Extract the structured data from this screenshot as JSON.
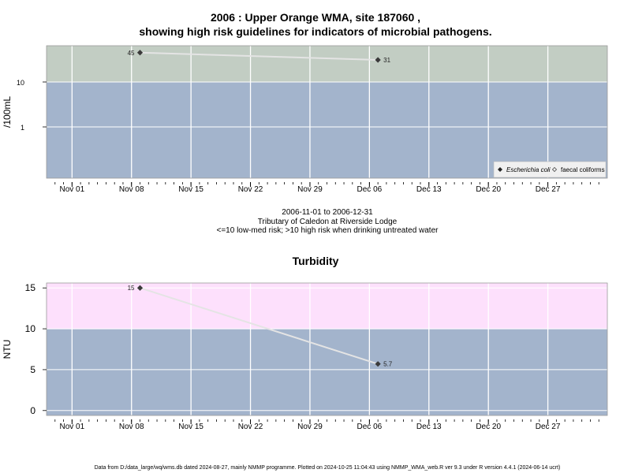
{
  "chart_data": [
    {
      "type": "line",
      "title_line1": "2006 : Upper Orange WMA, site 187060 ,",
      "title_line2": "showing high risk guidelines for indicators of microbial pathogens.",
      "ylabel": "/100mL",
      "scale": "log",
      "yticks": [
        "10",
        "1"
      ],
      "xticks": [
        "Nov 01",
        "Nov 08",
        "Nov 15",
        "Nov 22",
        "Nov 29",
        "Dec 06",
        "Dec 13",
        "Dec 20",
        "Dec 27"
      ],
      "xlim": [
        "2006-10-29",
        "2007-01-03"
      ],
      "threshold": 10,
      "series": [
        {
          "name": "Escherichia coli",
          "x": [
            "2006-11-09",
            "2006-12-07"
          ],
          "y": [
            45,
            31
          ],
          "labels": [
            "45",
            "31"
          ]
        }
      ],
      "legend": {
        "position": "bottom-right",
        "items": [
          "Escherichia coli",
          "faecal coliforms"
        ]
      },
      "grid": true,
      "colors": {
        "high": "#c2cdc3",
        "low": "#a3b4cc",
        "line": "#e4e4e4",
        "point": "#3a3a3a"
      }
    },
    {
      "type": "line",
      "title": "Turbidity",
      "ylabel": "NTU",
      "yticks": [
        "15",
        "10",
        "5",
        "0"
      ],
      "xticks": [
        "Nov 01",
        "Nov 08",
        "Nov 15",
        "Nov 22",
        "Nov 29",
        "Dec 06",
        "Dec 13",
        "Dec 20",
        "Dec 27"
      ],
      "xlim": [
        "2006-10-29",
        "2007-01-03"
      ],
      "ylim": [
        -0.6,
        15.6
      ],
      "threshold": 10,
      "series": [
        {
          "name": "Turbidity",
          "x": [
            "2006-11-09",
            "2006-12-07"
          ],
          "y": [
            15,
            5.7
          ],
          "labels": [
            "15",
            "5.7"
          ]
        }
      ],
      "grid": true,
      "colors": {
        "high": "#fde0fc",
        "low": "#a3b4cc",
        "line": "#e4e4e4",
        "point": "#3a3a3a"
      }
    }
  ],
  "caption": {
    "date_range": "2006-11-01 to 2006-12-31",
    "site": "Tributary of Caledon at Riverside Lodge",
    "risk_note": "<=10 low-med risk; >10 high risk when drinking untreated water"
  },
  "footer": "Data from D:/data_large/wq/wms.db dated 2024-08-27, mainly NMMP programme. Plotted on 2024-10-25 11:04:43 using NMMP_WMA_web.R ver 9.3 under R version 4.4.1 (2024-06-14 ucrt)"
}
